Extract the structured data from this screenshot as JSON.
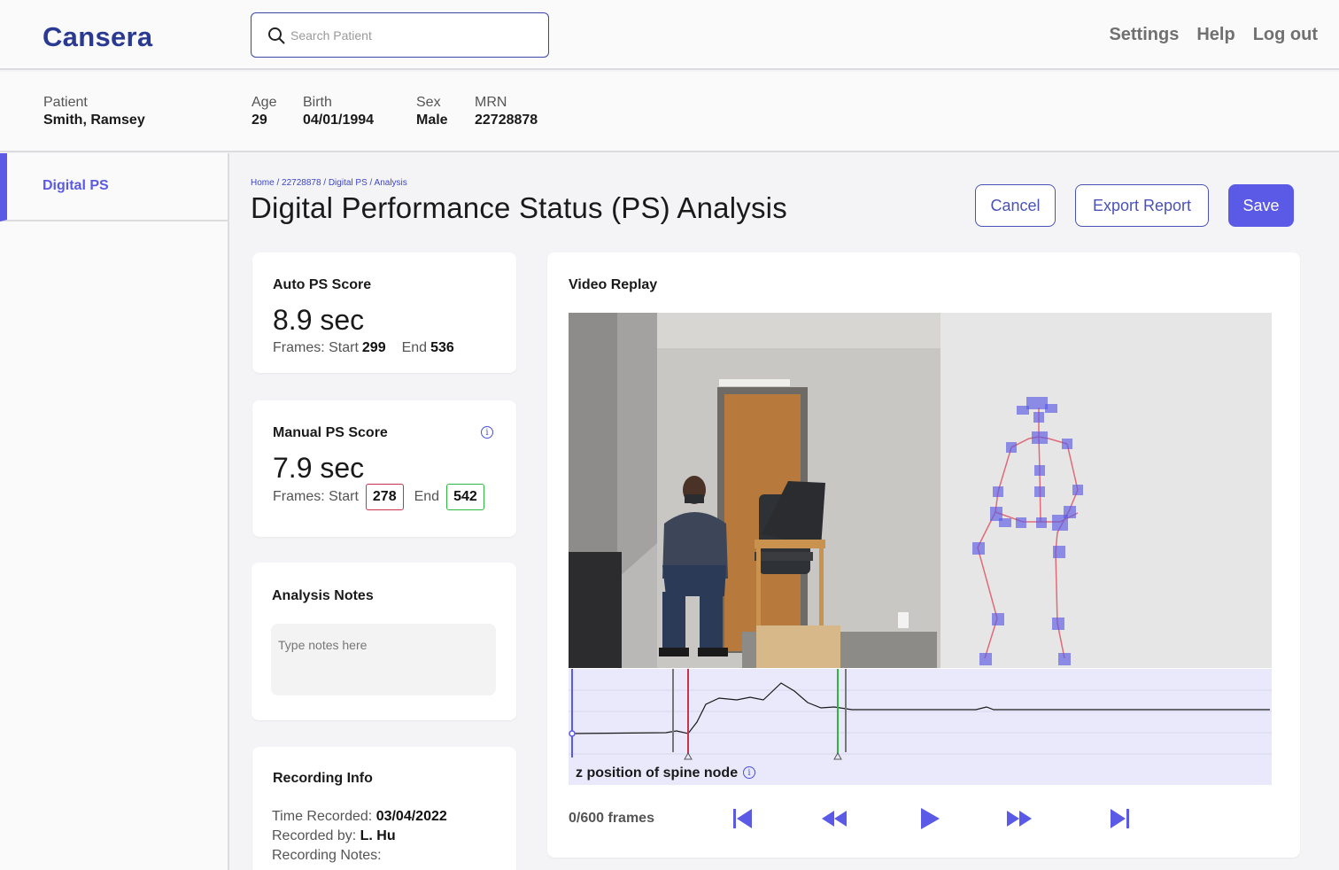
{
  "app": {
    "name": "Cansera"
  },
  "search": {
    "placeholder": "Search Patient"
  },
  "topnav": [
    "Settings",
    "Help",
    "Log out"
  ],
  "patient": {
    "patient_label": "Patient",
    "patient_value": "Smith, Ramsey",
    "age_label": "Age",
    "age_value": "29",
    "birth_label": "Birth",
    "birth_value": "04/01/1994",
    "sex_label": "Sex",
    "sex_value": "Male",
    "mrn_label": "MRN",
    "mrn_value": "22728878"
  },
  "sidebar": {
    "items": [
      {
        "label": "Digital PS",
        "active": true
      }
    ]
  },
  "breadcrumb": "Home / 22728878 / Digital PS / Analysis",
  "page_title": "Digital Performance Status (PS) Analysis",
  "actions": {
    "cancel": "Cancel",
    "export": "Export Report",
    "save": "Save"
  },
  "auto_ps": {
    "title": "Auto PS Score",
    "value": "8.9 sec",
    "frames_label": "Frames: Start",
    "start": "299",
    "end_label": "End",
    "end": "536"
  },
  "manual_ps": {
    "title": "Manual PS Score",
    "value": "7.9 sec",
    "frames_label": "Frames: Start",
    "start": "278",
    "end_label": "End",
    "end": "542",
    "start_color": "#c8324a",
    "end_color": "#2db83d"
  },
  "notes": {
    "title": "Analysis Notes",
    "placeholder": "Type notes here"
  },
  "recording": {
    "title": "Recording Info",
    "time_label": "Time Recorded:",
    "time_value": "03/04/2022",
    "by_label": "Recorded by:",
    "by_value": "L. Hu",
    "notes_label": "Recording Notes:"
  },
  "video": {
    "title": "Video Replay",
    "plot_label": "z position of spine node",
    "frame_counter": "0/600 frames",
    "controls": [
      "skip-back-icon",
      "rewind-icon",
      "play-icon",
      "fast-forward-icon",
      "skip-forward-icon"
    ]
  },
  "colors": {
    "brand": "#2a3a93",
    "accent": "#5a5ae6",
    "start_marker": "#c8324a",
    "end_marker": "#2db83d"
  }
}
